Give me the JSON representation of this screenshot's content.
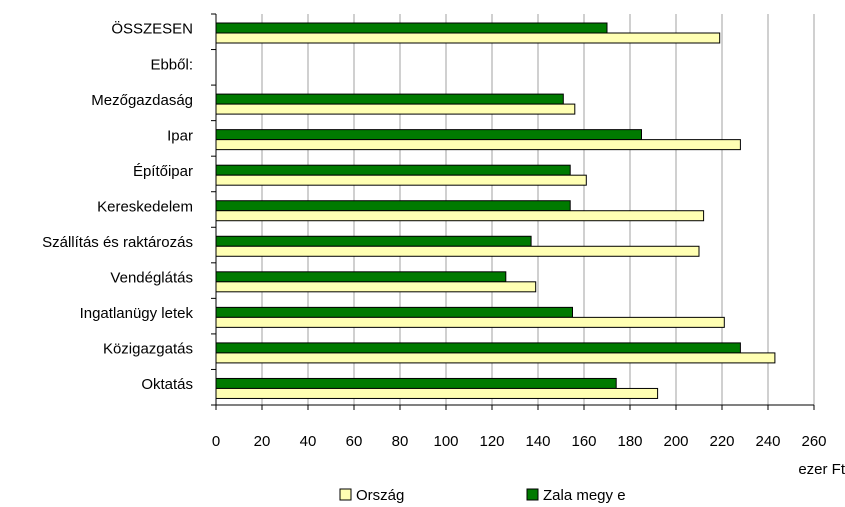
{
  "chart_data": {
    "type": "bar",
    "orientation": "horizontal",
    "categories": [
      "ÖSSZESEN",
      "Ebből:",
      "Mezőgazdaság",
      "Ipar",
      "Építőipar",
      "Kereskedelem",
      "Szállítás és raktározás",
      "Vendéglátás",
      "Ingatlanügy letek",
      "Közigazgatás",
      "Oktatás"
    ],
    "series": [
      {
        "name": "Zala megy e",
        "color": "#007a00",
        "values": [
          170,
          null,
          151,
          185,
          154,
          154,
          137,
          126,
          155,
          228,
          174
        ]
      },
      {
        "name": "Ország",
        "color": "#ffffb3",
        "values": [
          219,
          null,
          156,
          228,
          161,
          212,
          210,
          139,
          221,
          243,
          192
        ]
      }
    ],
    "xlim": [
      0,
      260
    ],
    "xticks": [
      "0",
      "20",
      "40",
      "60",
      "80",
      "100",
      "120",
      "140",
      "160",
      "180",
      "200",
      "220",
      "240",
      "260"
    ],
    "xunit": "ezer Ft",
    "grid": "vertical",
    "legend": "bottom",
    "legend_order": [
      "Ország",
      "Zala megy e"
    ]
  }
}
